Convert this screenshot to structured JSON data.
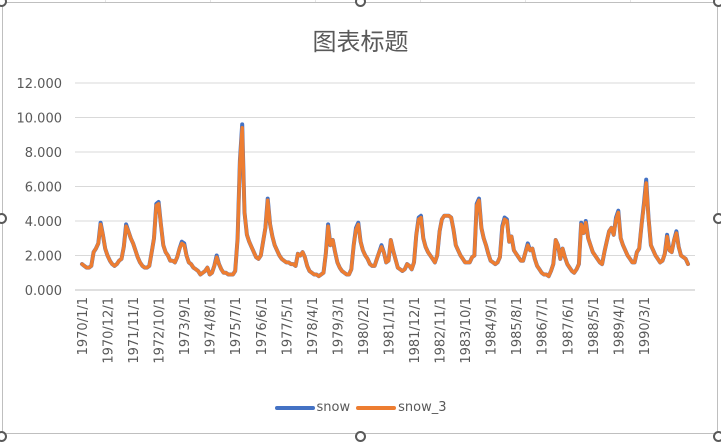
{
  "chart_data": {
    "type": "line",
    "title": "图表标题",
    "xlabel": "",
    "ylabel": "",
    "ylim": [
      0,
      12
    ],
    "y_ticks": [
      "0.000",
      "2.000",
      "4.000",
      "6.000",
      "8.000",
      "10.000",
      "12.000"
    ],
    "x_tick_labels": [
      "1970/1/1",
      "1970/12/1",
      "1971/11/1",
      "1972/10/1",
      "1973/9/1",
      "1974/8/1",
      "1975/7/1",
      "1976/6/1",
      "1977/5/1",
      "1978/4/1",
      "1979/3/1",
      "1980/2/1",
      "1981/1/1",
      "1981/12/1",
      "1982/11/1",
      "1983/10/1",
      "1984/9/1",
      "1985/8/1",
      "1986/7/1",
      "1987/6/1",
      "1988/5/1",
      "1989/4/1",
      "1990/3/1"
    ],
    "x_tick_step_months": 11,
    "x_start": "1970/1/1",
    "grid": true,
    "legend_position": "bottom",
    "series": [
      {
        "name": "snow",
        "color": "#4472C4",
        "values": [
          1.5,
          1.4,
          1.3,
          1.3,
          1.4,
          2.2,
          2.4,
          2.7,
          3.9,
          3.2,
          2.4,
          2.0,
          1.7,
          1.5,
          1.4,
          1.5,
          1.7,
          1.8,
          2.5,
          3.8,
          3.4,
          3.0,
          2.7,
          2.3,
          1.9,
          1.6,
          1.4,
          1.3,
          1.3,
          1.4,
          2.2,
          3.0,
          5.0,
          5.1,
          3.8,
          2.6,
          2.2,
          2.0,
          1.7,
          1.7,
          1.6,
          1.9,
          2.4,
          2.8,
          2.7,
          2.0,
          1.6,
          1.5,
          1.3,
          1.2,
          1.1,
          0.9,
          1.0,
          1.1,
          1.3,
          0.9,
          1.0,
          1.4,
          2.0,
          1.5,
          1.2,
          1.0,
          1.0,
          0.9,
          0.9,
          0.9,
          1.1,
          3.0,
          7.5,
          9.6,
          4.5,
          3.2,
          2.8,
          2.5,
          2.2,
          1.9,
          1.8,
          2.0,
          2.8,
          3.6,
          5.3,
          3.8,
          3.1,
          2.6,
          2.3,
          2.0,
          1.8,
          1.7,
          1.6,
          1.6,
          1.5,
          1.5,
          1.4,
          2.1,
          2.0,
          2.2,
          1.9,
          1.4,
          1.1,
          1.0,
          0.9,
          0.9,
          0.8,
          0.9,
          1.0,
          2.1,
          3.8,
          2.6,
          2.9,
          2.2,
          1.6,
          1.3,
          1.1,
          1.0,
          0.9,
          0.9,
          1.2,
          2.6,
          3.6,
          3.9,
          2.8,
          2.3,
          2.0,
          1.8,
          1.5,
          1.4,
          1.4,
          1.8,
          2.2,
          2.6,
          2.2,
          1.6,
          1.7,
          2.9,
          2.3,
          1.8,
          1.3,
          1.2,
          1.1,
          1.2,
          1.5,
          1.4,
          1.2,
          1.6,
          3.2,
          4.2,
          4.3,
          3.0,
          2.5,
          2.2,
          2.0,
          1.8,
          1.6,
          2.0,
          3.4,
          4.1,
          4.3,
          4.3,
          4.3,
          4.2,
          3.5,
          2.6,
          2.3,
          2.0,
          1.8,
          1.6,
          1.6,
          1.6,
          1.9,
          2.0,
          5.0,
          5.3,
          3.6,
          3.0,
          2.6,
          2.1,
          1.7,
          1.6,
          1.5,
          1.6,
          1.9,
          3.7,
          4.2,
          4.1,
          2.8,
          3.1,
          2.3,
          2.1,
          1.9,
          1.7,
          1.7,
          2.2,
          2.7,
          2.3,
          2.4,
          1.8,
          1.4,
          1.2,
          1.0,
          0.9,
          0.9,
          0.8,
          1.1,
          1.5,
          2.9,
          2.6,
          1.8,
          2.4,
          1.9,
          1.5,
          1.3,
          1.1,
          1.0,
          1.2,
          1.5,
          3.9,
          3.3,
          4.0,
          3.0,
          2.6,
          2.2,
          2.0,
          1.8,
          1.6,
          1.5,
          2.2,
          2.8,
          3.4,
          3.6,
          3.2,
          4.2,
          4.6,
          3.0,
          2.6,
          2.3,
          2.0,
          1.8,
          1.6,
          1.6,
          2.2,
          2.4,
          3.8,
          5.0,
          6.4,
          4.2,
          2.6,
          2.3,
          2.0,
          1.8,
          1.6,
          1.7,
          2.1,
          3.2,
          2.3,
          2.2,
          2.9,
          3.4,
          2.5,
          2.0,
          1.9,
          1.8,
          1.5
        ],
        "tick_step_note": "approximate monthly values read from chart"
      },
      {
        "name": "snow_3",
        "color": "#ED7D31",
        "values": [
          1.5,
          1.4,
          1.3,
          1.3,
          1.4,
          2.2,
          2.4,
          2.7,
          3.8,
          3.2,
          2.4,
          2.0,
          1.7,
          1.5,
          1.4,
          1.5,
          1.7,
          1.8,
          2.5,
          3.7,
          3.4,
          3.0,
          2.7,
          2.3,
          1.9,
          1.6,
          1.4,
          1.3,
          1.3,
          1.4,
          2.2,
          3.0,
          4.9,
          5.0,
          3.8,
          2.6,
          2.2,
          2.0,
          1.7,
          1.7,
          1.6,
          1.9,
          2.4,
          2.7,
          2.6,
          2.0,
          1.6,
          1.5,
          1.3,
          1.2,
          1.1,
          0.9,
          1.0,
          1.1,
          1.3,
          0.9,
          1.0,
          1.4,
          1.9,
          1.5,
          1.2,
          1.0,
          1.0,
          0.9,
          0.9,
          0.9,
          1.1,
          3.0,
          7.4,
          9.4,
          4.5,
          3.2,
          2.8,
          2.5,
          2.2,
          1.9,
          1.8,
          2.0,
          2.8,
          3.6,
          5.2,
          3.8,
          3.1,
          2.6,
          2.3,
          2.0,
          1.8,
          1.7,
          1.6,
          1.6,
          1.5,
          1.5,
          1.4,
          2.1,
          2.0,
          2.2,
          1.9,
          1.4,
          1.1,
          1.0,
          0.9,
          0.9,
          0.8,
          0.9,
          1.0,
          2.1,
          3.7,
          2.6,
          2.9,
          2.2,
          1.6,
          1.3,
          1.1,
          1.0,
          0.9,
          0.9,
          1.2,
          2.6,
          3.5,
          3.8,
          2.8,
          2.3,
          2.0,
          1.8,
          1.5,
          1.4,
          1.4,
          1.8,
          2.2,
          2.5,
          2.2,
          1.6,
          1.7,
          2.9,
          2.3,
          1.8,
          1.3,
          1.2,
          1.1,
          1.2,
          1.5,
          1.4,
          1.2,
          1.6,
          3.2,
          4.1,
          4.2,
          3.0,
          2.5,
          2.2,
          2.0,
          1.8,
          1.6,
          2.0,
          3.4,
          4.1,
          4.3,
          4.3,
          4.3,
          4.2,
          3.5,
          2.6,
          2.3,
          2.0,
          1.8,
          1.6,
          1.6,
          1.6,
          1.9,
          2.0,
          4.9,
          5.2,
          3.6,
          3.0,
          2.6,
          2.1,
          1.7,
          1.6,
          1.5,
          1.6,
          1.9,
          3.6,
          4.1,
          4.0,
          2.8,
          3.1,
          2.3,
          2.1,
          1.9,
          1.7,
          1.7,
          2.2,
          2.6,
          2.3,
          2.4,
          1.8,
          1.4,
          1.2,
          1.0,
          0.9,
          0.9,
          0.8,
          1.1,
          1.5,
          2.9,
          2.6,
          1.8,
          2.4,
          1.9,
          1.5,
          1.3,
          1.1,
          1.0,
          1.2,
          1.5,
          3.8,
          3.3,
          3.9,
          3.0,
          2.6,
          2.2,
          2.0,
          1.8,
          1.6,
          1.5,
          2.2,
          2.8,
          3.4,
          3.6,
          3.2,
          4.1,
          4.5,
          3.0,
          2.6,
          2.3,
          2.0,
          1.8,
          1.6,
          1.6,
          2.2,
          2.4,
          3.8,
          4.9,
          6.2,
          4.2,
          2.6,
          2.3,
          2.0,
          1.8,
          1.6,
          1.7,
          2.1,
          3.1,
          2.3,
          2.2,
          2.9,
          3.3,
          2.5,
          2.0,
          1.9,
          1.8,
          1.5
        ]
      }
    ]
  }
}
